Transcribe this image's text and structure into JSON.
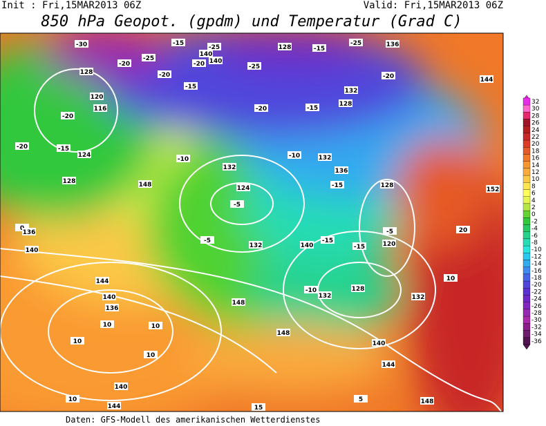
{
  "header": {
    "init": "Init : Fri,15MAR2013 06Z",
    "valid": "Valid: Fri,15MAR2013 06Z",
    "title": "850 hPa Geopot. (gpdm) und Temperatur (Grad C)"
  },
  "colorbar": {
    "labels": [
      32,
      30,
      28,
      26,
      24,
      22,
      20,
      18,
      16,
      14,
      12,
      10,
      8,
      6,
      4,
      2,
      0,
      -2,
      -4,
      -6,
      -8,
      -10,
      -12,
      -14,
      -16,
      -18,
      -20,
      -22,
      -24,
      -26,
      -28,
      -30,
      -32,
      -34,
      -36
    ],
    "colors": [
      "#e62ee6",
      "#ff66cc",
      "#e6286e",
      "#a01428",
      "#b41e1e",
      "#c82828",
      "#dc3c28",
      "#e65a28",
      "#f07828",
      "#f59632",
      "#faaa3c",
      "#fcc846",
      "#ffe650",
      "#ffff5a",
      "#e6f550",
      "#b4e646",
      "#64d232",
      "#32c83c",
      "#28c864",
      "#28d28c",
      "#28dcb4",
      "#28e6dc",
      "#28c8f0",
      "#32aaf0",
      "#3c8cf0",
      "#4664e6",
      "#5046dc",
      "#5a32d2",
      "#6e28c8",
      "#8228be",
      "#9628b4",
      "#aa28aa",
      "#8c1e8c",
      "#6e1e6e",
      "#501450"
    ]
  },
  "map_labels": [
    "-30",
    "128",
    "-20",
    "-25",
    "-20",
    "-15",
    "140",
    "-25",
    "-20",
    "140",
    "-25",
    "128",
    "-15",
    "-25",
    "136",
    "120",
    "116",
    "-20",
    "-15",
    "-20",
    "-15",
    "132",
    "128",
    "-20",
    "144",
    "-20",
    "-15",
    "124",
    "128",
    "148",
    "-10",
    "132",
    "124",
    "-5",
    "-10",
    "132",
    "136",
    "-15",
    "128",
    "152",
    "0",
    "136",
    "-5",
    "132",
    "140",
    "-15",
    "-15",
    "120",
    "-5",
    "20",
    "140",
    "144",
    "10",
    "148",
    "-10",
    "132",
    "128",
    "132",
    "10",
    "10",
    "140",
    "136",
    "10",
    "10",
    "148",
    "140",
    "144",
    "140",
    "10",
    "144",
    "15",
    "5",
    "148"
  ],
  "footer": "Daten: GFS-Modell des amerikanischen Wetterdienstes"
}
